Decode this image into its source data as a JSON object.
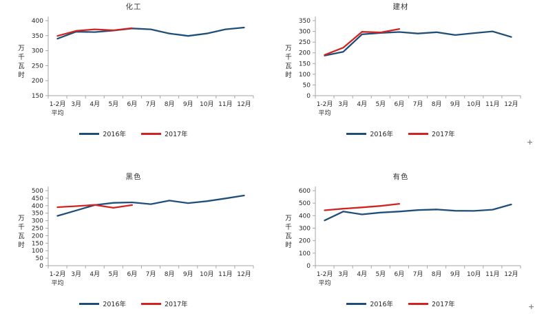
{
  "colors": {
    "series_2016": "#1F4E79",
    "series_2017": "#D22320",
    "axis": "#A6A6A6",
    "tick_text": "#262626",
    "title_text": "#333333",
    "artifact": "#8A8A8A",
    "background": "#FFFFFF"
  },
  "artifacts": {
    "plus": "+"
  },
  "chart_data": [
    {
      "type": "line",
      "title": "化工",
      "ylabel": "万千瓦时",
      "xlabel": "",
      "ylim": [
        150,
        400
      ],
      "ytick_step": 50,
      "grid": false,
      "legend_position": "bottom",
      "categories": [
        "1-2月|平均",
        "3月",
        "4月",
        "5月",
        "6月",
        "7月",
        "8月",
        "9月",
        "10月",
        "11月",
        "12月"
      ],
      "series": [
        {
          "name": "2016年",
          "color": "#1F4E79",
          "values": [
            340,
            363,
            362,
            367,
            374,
            371,
            357,
            349,
            357,
            371,
            377
          ]
        },
        {
          "name": "2017年",
          "color": "#D22320",
          "values": [
            349,
            366,
            371,
            368,
            375
          ]
        }
      ]
    },
    {
      "type": "line",
      "title": "建材",
      "ylabel": "万千瓦时",
      "xlabel": "",
      "ylim": [
        0,
        350
      ],
      "ytick_step": 50,
      "grid": false,
      "legend_position": "bottom",
      "categories": [
        "1-2月|平均",
        "3月",
        "4月",
        "5月",
        "6月",
        "7月",
        "8月",
        "9月",
        "10月",
        "11月",
        "12月"
      ],
      "series": [
        {
          "name": "2016年",
          "color": "#1F4E79",
          "values": [
            187,
            205,
            286,
            293,
            297,
            290,
            296,
            283,
            292,
            300,
            274
          ]
        },
        {
          "name": "2017年",
          "color": "#D22320",
          "values": [
            190,
            224,
            298,
            295,
            311
          ]
        }
      ]
    },
    {
      "type": "line",
      "title": "黑色",
      "ylabel": "万千瓦时",
      "xlabel": "",
      "ylim": [
        0,
        500
      ],
      "ytick_step": 50,
      "grid": false,
      "legend_position": "bottom",
      "categories": [
        "1-2月|平均",
        "3月",
        "4月",
        "5月",
        "6月",
        "7月",
        "8月",
        "9月",
        "10月",
        "11月",
        "12月"
      ],
      "series": [
        {
          "name": "2016年",
          "color": "#1F4E79",
          "values": [
            332,
            368,
            404,
            419,
            422,
            410,
            434,
            417,
            430,
            448,
            468
          ]
        },
        {
          "name": "2017年",
          "color": "#D22320",
          "values": [
            390,
            397,
            405,
            386,
            404
          ]
        }
      ]
    },
    {
      "type": "line",
      "title": "有色",
      "ylabel": "万千瓦时",
      "xlabel": "",
      "ylim": [
        0,
        600
      ],
      "ytick_step": 100,
      "grid": false,
      "legend_position": "bottom",
      "categories": [
        "1-2月|平均",
        "3月",
        "4月",
        "5月",
        "6月",
        "7月",
        "8月",
        "9月",
        "10月",
        "11月",
        "12月"
      ],
      "series": [
        {
          "name": "2016年",
          "color": "#1F4E79",
          "values": [
            362,
            433,
            410,
            425,
            433,
            445,
            450,
            439,
            438,
            448,
            490
          ]
        },
        {
          "name": "2017年",
          "color": "#D22320",
          "values": [
            443,
            456,
            466,
            478,
            495
          ]
        }
      ]
    }
  ]
}
